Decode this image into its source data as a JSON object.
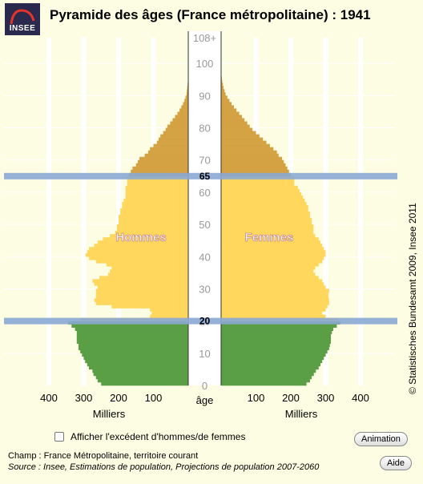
{
  "logo": {
    "text": "INSEE"
  },
  "title": "Pyramide des âges (France métropolitaine) : 1941",
  "credit": "© Statistisches Bundesamt 2009, Insee 2011",
  "checkbox_label": "Afficher l'excédent d'hommes/de femmes",
  "buttons": {
    "animation": "Animation",
    "help": "Aide"
  },
  "footer": {
    "line1": "Champ : France Métropolitaine, territoire courant",
    "line2": "Source : Insee, Estimations de population, Projections de population 2007-2060"
  },
  "colors": {
    "background": "#fdfde3",
    "grid": "#ffffff",
    "young": "#5a9e46",
    "adult": "#ffd75c",
    "senior": "#d4a243",
    "highlight": "#8aa8d4"
  },
  "chart_data": {
    "type": "population-pyramid",
    "year": 1941,
    "x_ticks": [
      400,
      300,
      200,
      100
    ],
    "x_unit": "Milliers",
    "age_label": "âge",
    "age_ticks": [
      "0",
      "10",
      "20",
      "30",
      "40",
      "50",
      "60",
      "70",
      "80",
      "90",
      "100",
      "108+"
    ],
    "markers": [
      {
        "age": "65"
      },
      {
        "age": "20"
      }
    ],
    "left_label": "Hommes",
    "right_label": "Femmes",
    "age_bands": [
      {
        "from": 0,
        "to": 19,
        "band": "young"
      },
      {
        "from": 20,
        "to": 64,
        "band": "adult"
      },
      {
        "from": 65,
        "to": 108,
        "band": "senior"
      }
    ],
    "hommes": [
      250,
      260,
      265,
      272,
      275,
      285,
      290,
      296,
      300,
      305,
      310,
      315,
      315,
      320,
      320,
      320,
      320,
      325,
      335,
      345,
      310,
      110,
      105,
      110,
      220,
      265,
      270,
      265,
      265,
      265,
      260,
      270,
      275,
      255,
      230,
      225,
      220,
      235,
      265,
      285,
      295,
      290,
      285,
      270,
      260,
      245,
      225,
      210,
      205,
      205,
      200,
      200,
      200,
      195,
      195,
      190,
      190,
      185,
      180,
      180,
      180,
      180,
      175,
      175,
      175,
      170,
      165,
      160,
      150,
      145,
      140,
      125,
      115,
      110,
      100,
      90,
      85,
      80,
      72,
      65,
      60,
      52,
      45,
      38,
      31,
      25,
      20,
      15,
      11,
      8,
      5,
      4,
      3,
      2,
      1,
      1,
      0,
      0,
      0,
      0,
      0,
      0,
      0,
      0,
      0,
      0,
      0,
      0,
      0
    ],
    "femmes": [
      245,
      255,
      260,
      266,
      272,
      280,
      285,
      290,
      295,
      300,
      305,
      310,
      312,
      315,
      315,
      315,
      318,
      322,
      332,
      342,
      335,
      300,
      290,
      300,
      305,
      310,
      310,
      308,
      308,
      310,
      300,
      295,
      290,
      280,
      270,
      265,
      270,
      280,
      290,
      295,
      300,
      300,
      295,
      290,
      285,
      280,
      270,
      265,
      265,
      265,
      260,
      260,
      255,
      255,
      250,
      250,
      245,
      240,
      235,
      230,
      225,
      220,
      210,
      210,
      210,
      200,
      195,
      190,
      185,
      180,
      175,
      165,
      160,
      150,
      140,
      130,
      120,
      110,
      100,
      90,
      82,
      75,
      67,
      60,
      52,
      44,
      37,
      30,
      24,
      18,
      13,
      10,
      7,
      5,
      3,
      2,
      1,
      1,
      0,
      0,
      0,
      0,
      0,
      0,
      0,
      0,
      0,
      0,
      0
    ]
  }
}
